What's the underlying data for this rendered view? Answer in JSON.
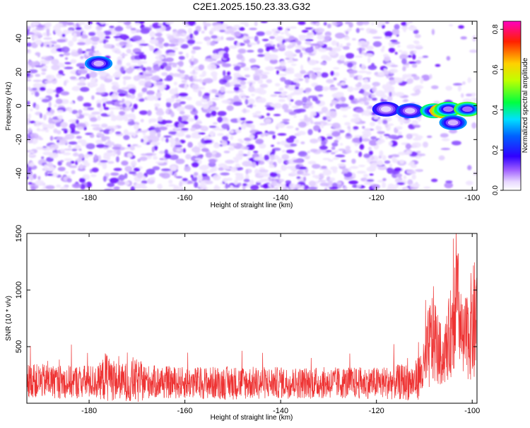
{
  "title": "C2E1.2025.150.23.33.G32",
  "chart_data": [
    {
      "type": "heatmap",
      "title": "C2E1.2025.150.23.33.G32",
      "xlabel": "Height of straight line (km)",
      "ylabel": "Frequency (Hz)",
      "xlim": [
        -193,
        -99
      ],
      "ylim": [
        -50,
        50
      ],
      "xticks": [
        -180,
        -160,
        -140,
        -120,
        -100
      ],
      "yticks": [
        -40,
        -20,
        0,
        20,
        40
      ],
      "colorbar": {
        "label": "Normalized spectral amplitude",
        "range": [
          0.0,
          0.84
        ],
        "ticks": [
          0.0,
          0.2,
          0.4,
          0.6,
          0.8
        ],
        "colormap": [
          "#ffffff",
          "#e0c8ff",
          "#8800ff",
          "#0000ff",
          "#00ffff",
          "#00ff00",
          "#ffff00",
          "#ff0000",
          "#ff00cc"
        ]
      },
      "features": [
        {
          "x": -178,
          "y": 25,
          "value": 0.3
        },
        {
          "x": -118,
          "y": -2,
          "value": 0.2
        },
        {
          "x": -113,
          "y": -3,
          "value": 0.25
        },
        {
          "x": -108,
          "y": -3,
          "value": 0.42
        },
        {
          "x": -106,
          "y": -3,
          "value": 0.65
        },
        {
          "x": -105,
          "y": -2,
          "value": 0.45
        },
        {
          "x": -104,
          "y": -10,
          "value": 0.3
        },
        {
          "x": -101,
          "y": -2,
          "value": 0.48
        }
      ]
    },
    {
      "type": "line",
      "xlabel": "Height of straight line (km)",
      "ylabel": "SNR (10 * v/v)",
      "xlim": [
        -193,
        -99
      ],
      "ylim": [
        0,
        1500
      ],
      "xticks": [
        -180,
        -160,
        -140,
        -120,
        -100
      ],
      "yticks": [
        500,
        1000,
        1500
      ],
      "color": "#ee3333",
      "envelope": {
        "x": [
          -193,
          -185,
          -178,
          -176,
          -174,
          -170,
          -168,
          -160,
          -150,
          -140,
          -130,
          -120,
          -112,
          -110,
          -109,
          -108,
          -107,
          -106,
          -104,
          -103,
          -102,
          -101,
          -100,
          -99
        ],
        "base": [
          200,
          190,
          190,
          250,
          190,
          190,
          190,
          180,
          180,
          180,
          180,
          180,
          190,
          300,
          500,
          600,
          450,
          400,
          700,
          900,
          500,
          600,
          700,
          700
        ],
        "amp": [
          150,
          150,
          150,
          250,
          150,
          200,
          150,
          140,
          150,
          140,
          140,
          140,
          170,
          250,
          400,
          450,
          300,
          250,
          450,
          500,
          350,
          400,
          500,
          650
        ]
      }
    }
  ]
}
